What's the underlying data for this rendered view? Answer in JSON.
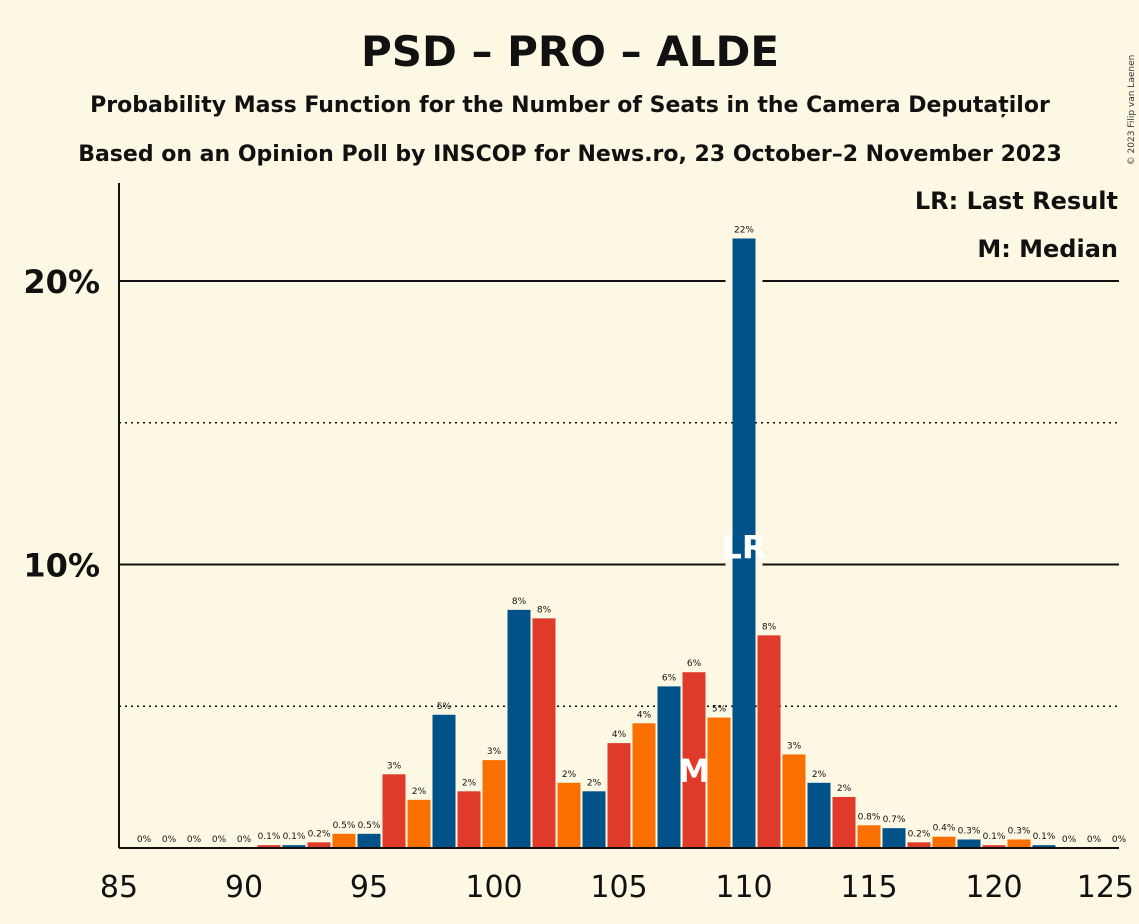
{
  "title": "PSD – PRO – ALDE",
  "subtitle1": "Probability Mass Function for the Number of Seats in the Camera Deputaților",
  "subtitle2": "Based on an Opinion Poll by INSCOP for News.ro, 23 October–2 November 2023",
  "legend": {
    "lr": "LR: Last Result",
    "median": "M: Median"
  },
  "copyright": "© 2023 Filip van Laenen",
  "colors": {
    "blue": "#005288",
    "red": "#e03a2a",
    "orange": "#f97000",
    "background": "#fdf8e4"
  },
  "chart_data": {
    "type": "bar",
    "xlim": [
      85,
      125
    ],
    "ylim": [
      0,
      23
    ],
    "x_ticks": [
      "85",
      "90",
      "95",
      "100",
      "105",
      "110",
      "115",
      "120",
      "125"
    ],
    "y_ticks": [
      {
        "value": 10,
        "label": "10%"
      },
      {
        "value": 20,
        "label": "20%"
      }
    ],
    "dotted_gridlines": [
      5,
      15
    ],
    "seats": [
      86,
      87,
      88,
      89,
      90,
      91,
      92,
      93,
      94,
      95,
      96,
      97,
      98,
      99,
      100,
      101,
      102,
      103,
      104,
      105,
      106,
      107,
      108,
      109,
      110,
      111,
      112,
      113,
      114,
      115,
      116,
      117,
      118,
      119,
      120,
      121,
      122,
      123,
      124,
      125
    ],
    "values": [
      0,
      0,
      0,
      0,
      0,
      0.1,
      0.1,
      0.2,
      0.5,
      0.5,
      2.6,
      1.7,
      4.7,
      2.0,
      3.1,
      8.4,
      8.1,
      2.3,
      2.0,
      3.7,
      4.4,
      5.7,
      6.2,
      4.6,
      21.5,
      7.5,
      3.3,
      2.3,
      1.8,
      0.8,
      0.7,
      0.2,
      0.4,
      0.3,
      0.1,
      0.3,
      0.1,
      0,
      0,
      0
    ],
    "labels": [
      "0%",
      "0%",
      "0%",
      "0%",
      "0%",
      "0.1%",
      "0.1%",
      "0.2%",
      "0.5%",
      "0.5%",
      "3%",
      "2%",
      "5%",
      "2%",
      "3%",
      "8%",
      "8%",
      "2%",
      "2%",
      "4%",
      "4%",
      "6%",
      "6%",
      "5%",
      "22%",
      "8%",
      "3%",
      "2%",
      "2%",
      "0.8%",
      "0.7%",
      "0.2%",
      "0.4%",
      "0.3%",
      "0.1%",
      "0.3%",
      "0.1%",
      "0%",
      "0%",
      "0%"
    ],
    "colors": [
      "blue",
      "orange",
      "red",
      "blue",
      "orange",
      "red",
      "blue",
      "red",
      "orange",
      "blue",
      "red",
      "orange",
      "blue",
      "red",
      "orange",
      "blue",
      "red",
      "orange",
      "blue",
      "red",
      "orange",
      "blue",
      "red",
      "orange",
      "blue",
      "red",
      "orange",
      "blue",
      "red",
      "orange",
      "blue",
      "red",
      "orange",
      "blue",
      "red",
      "orange",
      "blue",
      "red",
      "orange",
      "blue"
    ],
    "last_result": {
      "seat": 110,
      "label": "LR"
    },
    "median": {
      "seat": 108,
      "label": "M"
    }
  }
}
